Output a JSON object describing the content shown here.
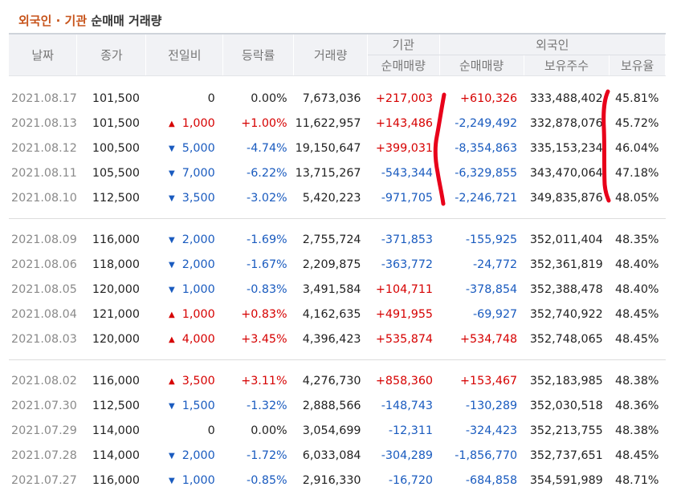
{
  "title": {
    "main": "외국인 · 기관",
    "sub": "순매매 거래량"
  },
  "headers": {
    "date": "날짜",
    "close": "종가",
    "diff": "전일비",
    "rate": "등락률",
    "volume": "거래량",
    "inst_group": "기관",
    "inst_net": "순매매량",
    "foreign_group": "외국인",
    "foreign_net": "순매매량",
    "foreign_shares": "보유주수",
    "foreign_ratio": "보유율"
  },
  "colors": {
    "up": "#d60000",
    "down": "#1a5bbf",
    "accent": "#c7541b",
    "annotation": "#e8001a"
  },
  "groups": [
    [
      {
        "date": "2021.08.17",
        "close": "101,500",
        "dir": "none",
        "diff": "0",
        "rate": "0.00%",
        "volume": "7,673,036",
        "inst": "+217,003",
        "foreign": "+610,326",
        "shares": "333,488,402",
        "ratio": "45.81%"
      },
      {
        "date": "2021.08.13",
        "close": "101,500",
        "dir": "up",
        "diff": "1,000",
        "rate": "+1.00%",
        "volume": "11,622,957",
        "inst": "+143,486",
        "foreign": "-2,249,492",
        "shares": "332,878,076",
        "ratio": "45.72%"
      },
      {
        "date": "2021.08.12",
        "close": "100,500",
        "dir": "down",
        "diff": "5,000",
        "rate": "-4.74%",
        "volume": "19,150,647",
        "inst": "+399,031",
        "foreign": "-8,354,863",
        "shares": "335,153,234",
        "ratio": "46.04%"
      },
      {
        "date": "2021.08.11",
        "close": "105,500",
        "dir": "down",
        "diff": "7,000",
        "rate": "-6.22%",
        "volume": "13,715,267",
        "inst": "-543,344",
        "foreign": "-6,329,855",
        "shares": "343,470,064",
        "ratio": "47.18%"
      },
      {
        "date": "2021.08.10",
        "close": "112,500",
        "dir": "down",
        "diff": "3,500",
        "rate": "-3.02%",
        "volume": "5,420,223",
        "inst": "-971,705",
        "foreign": "-2,246,721",
        "shares": "349,835,876",
        "ratio": "48.05%"
      }
    ],
    [
      {
        "date": "2021.08.09",
        "close": "116,000",
        "dir": "down",
        "diff": "2,000",
        "rate": "-1.69%",
        "volume": "2,755,724",
        "inst": "-371,853",
        "foreign": "-155,925",
        "shares": "352,011,404",
        "ratio": "48.35%"
      },
      {
        "date": "2021.08.06",
        "close": "118,000",
        "dir": "down",
        "diff": "2,000",
        "rate": "-1.67%",
        "volume": "2,209,875",
        "inst": "-363,772",
        "foreign": "-24,772",
        "shares": "352,361,819",
        "ratio": "48.40%"
      },
      {
        "date": "2021.08.05",
        "close": "120,000",
        "dir": "down",
        "diff": "1,000",
        "rate": "-0.83%",
        "volume": "3,491,584",
        "inst": "+104,711",
        "foreign": "-378,854",
        "shares": "352,388,478",
        "ratio": "48.40%"
      },
      {
        "date": "2021.08.04",
        "close": "121,000",
        "dir": "up",
        "diff": "1,000",
        "rate": "+0.83%",
        "volume": "4,162,635",
        "inst": "+491,955",
        "foreign": "-69,927",
        "shares": "352,740,922",
        "ratio": "48.45%"
      },
      {
        "date": "2021.08.03",
        "close": "120,000",
        "dir": "up",
        "diff": "4,000",
        "rate": "+3.45%",
        "volume": "4,396,423",
        "inst": "+535,874",
        "foreign": "+534,748",
        "shares": "352,748,065",
        "ratio": "48.45%"
      }
    ],
    [
      {
        "date": "2021.08.02",
        "close": "116,000",
        "dir": "up",
        "diff": "3,500",
        "rate": "+3.11%",
        "volume": "4,276,730",
        "inst": "+858,360",
        "foreign": "+153,467",
        "shares": "352,183,985",
        "ratio": "48.38%"
      },
      {
        "date": "2021.07.30",
        "close": "112,500",
        "dir": "down",
        "diff": "1,500",
        "rate": "-1.32%",
        "volume": "2,888,566",
        "inst": "-148,743",
        "foreign": "-130,289",
        "shares": "352,030,518",
        "ratio": "48.36%"
      },
      {
        "date": "2021.07.29",
        "close": "114,000",
        "dir": "none",
        "diff": "0",
        "rate": "0.00%",
        "volume": "3,054,699",
        "inst": "-12,311",
        "foreign": "-324,423",
        "shares": "352,213,755",
        "ratio": "48.38%"
      },
      {
        "date": "2021.07.28",
        "close": "114,000",
        "dir": "down",
        "diff": "2,000",
        "rate": "-1.72%",
        "volume": "6,033,084",
        "inst": "-304,289",
        "foreign": "-1,856,770",
        "shares": "352,737,651",
        "ratio": "48.45%"
      },
      {
        "date": "2021.07.27",
        "close": "116,000",
        "dir": "down",
        "diff": "1,000",
        "rate": "-0.85%",
        "volume": "2,916,330",
        "inst": "-16,720",
        "foreign": "-684,858",
        "shares": "354,591,989",
        "ratio": "48.71%"
      }
    ]
  ]
}
